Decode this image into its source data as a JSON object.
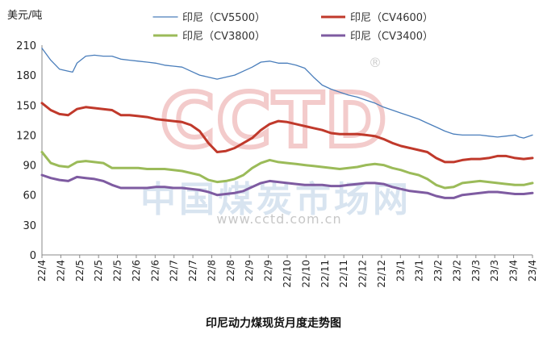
{
  "chart_data": {
    "type": "line",
    "title": "印尼动力煤现货月度走势图",
    "unit_label": "美元/吨",
    "ylim": [
      0,
      210
    ],
    "yticks": [
      0,
      30,
      60,
      90,
      120,
      150,
      180,
      210
    ],
    "grid": false,
    "legend_position": "top",
    "x_tick_labels": [
      "22/4",
      "22/4",
      "22/5",
      "22/5",
      "22/5",
      "22/6",
      "22/6",
      "22/7",
      "22/7",
      "22/8",
      "22/8",
      "22/9",
      "22/9",
      "22/10",
      "22/10",
      "22/11",
      "22/11",
      "22/12",
      "22/12",
      "23/1",
      "23/1",
      "23/2",
      "23/2",
      "23/3",
      "23/3",
      "23/4",
      "23/4"
    ],
    "series": [
      {
        "name": "印尼（CV5500）",
        "color": "#4a7ebb",
        "width": 1.3,
        "values": [
          [
            0,
            207
          ],
          [
            1,
            195
          ],
          [
            2,
            186
          ],
          [
            3,
            184
          ],
          [
            3.5,
            183
          ],
          [
            4,
            192
          ],
          [
            5,
            199
          ],
          [
            6,
            200
          ],
          [
            7,
            199
          ],
          [
            8,
            199
          ],
          [
            9,
            196
          ],
          [
            10,
            195
          ],
          [
            11,
            194
          ],
          [
            12,
            193
          ],
          [
            13,
            192
          ],
          [
            14,
            190
          ],
          [
            15,
            189
          ],
          [
            16,
            188
          ],
          [
            17,
            184
          ],
          [
            18,
            180
          ],
          [
            19,
            178
          ],
          [
            20,
            176
          ],
          [
            21,
            178
          ],
          [
            22,
            180
          ],
          [
            23,
            184
          ],
          [
            24,
            188
          ],
          [
            25,
            193
          ],
          [
            26,
            194
          ],
          [
            27,
            192
          ],
          [
            28,
            192
          ],
          [
            29,
            190
          ],
          [
            30,
            187
          ],
          [
            31,
            178
          ],
          [
            32,
            170
          ],
          [
            33,
            166
          ],
          [
            34,
            163
          ],
          [
            35,
            160
          ],
          [
            36,
            158
          ],
          [
            37,
            155
          ],
          [
            38,
            152
          ],
          [
            39,
            148
          ],
          [
            40,
            145
          ],
          [
            41,
            142
          ],
          [
            42,
            139
          ],
          [
            43,
            136
          ],
          [
            44,
            132
          ],
          [
            45,
            128
          ],
          [
            46,
            124
          ],
          [
            47,
            121
          ],
          [
            48,
            120
          ],
          [
            49,
            120
          ],
          [
            50,
            120
          ],
          [
            51,
            119
          ],
          [
            52,
            118
          ],
          [
            53,
            119
          ],
          [
            54,
            120
          ],
          [
            54.5,
            118
          ],
          [
            55,
            117
          ],
          [
            56,
            120
          ]
        ]
      },
      {
        "name": "印尼（CV4600）",
        "color": "#c0392b",
        "width": 3,
        "values": [
          [
            0,
            152
          ],
          [
            1,
            145
          ],
          [
            2,
            141
          ],
          [
            3,
            140
          ],
          [
            4,
            146
          ],
          [
            5,
            148
          ],
          [
            6,
            147
          ],
          [
            7,
            146
          ],
          [
            8,
            145
          ],
          [
            9,
            140
          ],
          [
            10,
            140
          ],
          [
            11,
            139
          ],
          [
            12,
            138
          ],
          [
            13,
            136
          ],
          [
            14,
            135
          ],
          [
            15,
            134
          ],
          [
            16,
            133
          ],
          [
            17,
            130
          ],
          [
            18,
            124
          ],
          [
            19,
            112
          ],
          [
            20,
            103
          ],
          [
            21,
            104
          ],
          [
            22,
            107
          ],
          [
            23,
            112
          ],
          [
            24,
            117
          ],
          [
            25,
            125
          ],
          [
            26,
            131
          ],
          [
            27,
            134
          ],
          [
            28,
            133
          ],
          [
            29,
            131
          ],
          [
            30,
            129
          ],
          [
            31,
            127
          ],
          [
            32,
            125
          ],
          [
            33,
            122
          ],
          [
            34,
            121
          ],
          [
            35,
            121
          ],
          [
            36,
            121
          ],
          [
            37,
            120
          ],
          [
            38,
            119
          ],
          [
            39,
            116
          ],
          [
            40,
            112
          ],
          [
            41,
            109
          ],
          [
            42,
            107
          ],
          [
            43,
            105
          ],
          [
            44,
            103
          ],
          [
            45,
            97
          ],
          [
            46,
            93
          ],
          [
            47,
            93
          ],
          [
            48,
            95
          ],
          [
            49,
            96
          ],
          [
            50,
            96
          ],
          [
            51,
            97
          ],
          [
            52,
            99
          ],
          [
            53,
            99
          ],
          [
            54,
            97
          ],
          [
            55,
            96
          ],
          [
            56,
            97
          ]
        ]
      },
      {
        "name": "印尼（CV3800）",
        "color": "#9bbb59",
        "width": 3,
        "values": [
          [
            0,
            103
          ],
          [
            1,
            92
          ],
          [
            2,
            89
          ],
          [
            3,
            88
          ],
          [
            4,
            93
          ],
          [
            5,
            94
          ],
          [
            6,
            93
          ],
          [
            7,
            92
          ],
          [
            8,
            87
          ],
          [
            9,
            87
          ],
          [
            10,
            87
          ],
          [
            11,
            87
          ],
          [
            12,
            86
          ],
          [
            13,
            86
          ],
          [
            14,
            86
          ],
          [
            15,
            85
          ],
          [
            16,
            84
          ],
          [
            17,
            82
          ],
          [
            18,
            80
          ],
          [
            19,
            75
          ],
          [
            20,
            73
          ],
          [
            21,
            74
          ],
          [
            22,
            76
          ],
          [
            23,
            80
          ],
          [
            24,
            87
          ],
          [
            25,
            92
          ],
          [
            26,
            95
          ],
          [
            27,
            93
          ],
          [
            28,
            92
          ],
          [
            29,
            91
          ],
          [
            30,
            90
          ],
          [
            31,
            89
          ],
          [
            32,
            88
          ],
          [
            33,
            87
          ],
          [
            34,
            86
          ],
          [
            35,
            87
          ],
          [
            36,
            88
          ],
          [
            37,
            90
          ],
          [
            38,
            91
          ],
          [
            39,
            90
          ],
          [
            40,
            87
          ],
          [
            41,
            85
          ],
          [
            42,
            82
          ],
          [
            43,
            80
          ],
          [
            44,
            76
          ],
          [
            45,
            70
          ],
          [
            46,
            67
          ],
          [
            47,
            68
          ],
          [
            48,
            72
          ],
          [
            49,
            73
          ],
          [
            50,
            74
          ],
          [
            51,
            73
          ],
          [
            52,
            72
          ],
          [
            53,
            71
          ],
          [
            54,
            70
          ],
          [
            55,
            70
          ],
          [
            56,
            72
          ]
        ]
      },
      {
        "name": "印尼（CV3400）",
        "color": "#7e5ba1",
        "width": 3,
        "values": [
          [
            0,
            80
          ],
          [
            1,
            77
          ],
          [
            2,
            75
          ],
          [
            3,
            74
          ],
          [
            4,
            78
          ],
          [
            5,
            77
          ],
          [
            6,
            76
          ],
          [
            7,
            74
          ],
          [
            8,
            70
          ],
          [
            9,
            67
          ],
          [
            10,
            67
          ],
          [
            11,
            67
          ],
          [
            12,
            67
          ],
          [
            13,
            68
          ],
          [
            14,
            68
          ],
          [
            15,
            67
          ],
          [
            16,
            67
          ],
          [
            17,
            66
          ],
          [
            18,
            65
          ],
          [
            19,
            63
          ],
          [
            20,
            60
          ],
          [
            21,
            61
          ],
          [
            22,
            62
          ],
          [
            23,
            64
          ],
          [
            24,
            68
          ],
          [
            25,
            72
          ],
          [
            26,
            74
          ],
          [
            27,
            73
          ],
          [
            28,
            72
          ],
          [
            29,
            71
          ],
          [
            30,
            70
          ],
          [
            31,
            70
          ],
          [
            32,
            70
          ],
          [
            33,
            69
          ],
          [
            34,
            69
          ],
          [
            35,
            70
          ],
          [
            36,
            71
          ],
          [
            37,
            72
          ],
          [
            38,
            72
          ],
          [
            39,
            71
          ],
          [
            40,
            68
          ],
          [
            41,
            66
          ],
          [
            42,
            64
          ],
          [
            43,
            63
          ],
          [
            44,
            62
          ],
          [
            45,
            59
          ],
          [
            46,
            57
          ],
          [
            47,
            57
          ],
          [
            48,
            60
          ],
          [
            49,
            61
          ],
          [
            50,
            62
          ],
          [
            51,
            63
          ],
          [
            52,
            63
          ],
          [
            53,
            62
          ],
          [
            54,
            61
          ],
          [
            55,
            61
          ],
          [
            56,
            62
          ]
        ]
      }
    ]
  },
  "watermark": {
    "logo": "CCTD",
    "registered": "®",
    "cn_text": "中国煤炭市场网",
    "url": "www.cctd.com.cn"
  }
}
